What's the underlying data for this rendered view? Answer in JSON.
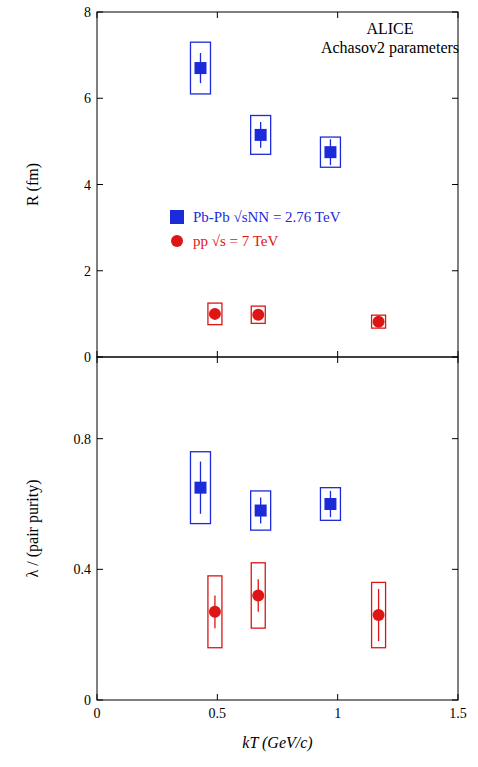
{
  "chart_data": [
    {
      "type": "scatter",
      "annotations": [
        "ALICE",
        "Achasov2 parameters"
      ],
      "y_label": "R (fm)",
      "xlim": [
        0,
        1.5
      ],
      "xticks": [
        0,
        0.5,
        1,
        1.5
      ],
      "ylim": [
        0,
        8
      ],
      "yticks": [
        0,
        2,
        4,
        6,
        8
      ],
      "tick_labels": "y",
      "legend": "left",
      "series": [
        {
          "name": "Pb-Pb √sNN = 2.76 TeV",
          "color": "#1c2bd9",
          "marker": "square",
          "x": [
            0.43,
            0.68,
            0.97
          ],
          "values": [
            6.7,
            5.15,
            4.75
          ],
          "errors": [
            0.35,
            0.3,
            0.3
          ],
          "sys_errors": [
            0.6,
            0.45,
            0.35
          ]
        },
        {
          "name": "pp √s = 7 TeV",
          "color": "#dd1515",
          "marker": "circle",
          "x": [
            0.49,
            0.67,
            1.17
          ],
          "values": [
            1.0,
            0.98,
            0.82
          ],
          "errors": [
            0.1,
            0.08,
            0.08
          ],
          "sys_errors": [
            0.25,
            0.2,
            0.15
          ]
        }
      ]
    },
    {
      "type": "scatter",
      "x_label": "kT (GeV/c)",
      "y_label": "λ / (pair purity)",
      "xlim": [
        0,
        1.5
      ],
      "xticks": [
        0,
        0.5,
        1,
        1.5
      ],
      "ylim": [
        0,
        1.05
      ],
      "yticks": [
        0,
        0.4,
        0.8
      ],
      "series": [
        {
          "color": "#1c2bd9",
          "marker": "square",
          "x": [
            0.43,
            0.68,
            0.97
          ],
          "values": [
            0.65,
            0.58,
            0.6
          ],
          "errors": [
            0.08,
            0.04,
            0.04
          ],
          "sys_errors": [
            0.11,
            0.06,
            0.05
          ]
        },
        {
          "color": "#dd1515",
          "marker": "circle",
          "x": [
            0.49,
            0.67,
            1.17
          ],
          "values": [
            0.27,
            0.32,
            0.26
          ],
          "errors": [
            0.05,
            0.05,
            0.08
          ],
          "sys_errors": [
            0.11,
            0.1,
            0.1
          ]
        }
      ]
    }
  ]
}
